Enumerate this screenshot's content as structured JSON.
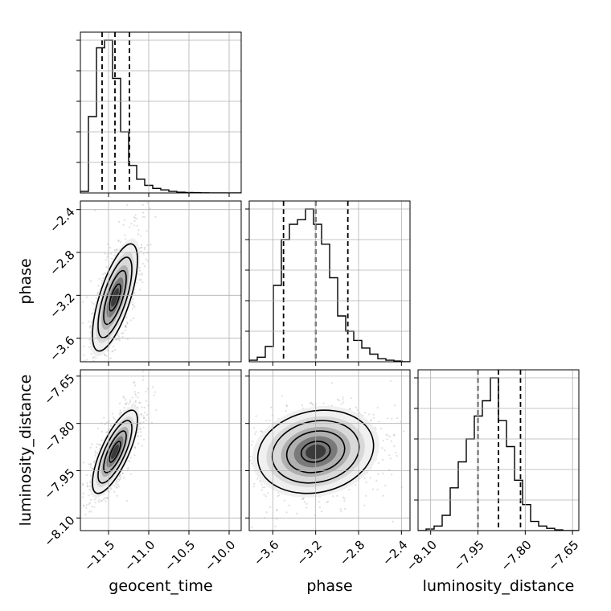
{
  "chart_data": {
    "type": "corner",
    "parameters": [
      "geocent_time",
      "phase",
      "luminosity_distance"
    ],
    "axes": {
      "geocent_time": {
        "label": "geocent_time",
        "range": [
          -11.85,
          -9.85
        ],
        "ticks": [
          -11.5,
          -11.0,
          -10.5,
          -10.0
        ],
        "tick_labels": [
          "−11.5",
          "−11.0",
          "−10.5",
          "−10.0"
        ]
      },
      "phase": {
        "label": "phase",
        "range": [
          -3.82,
          -2.32
        ],
        "ticks": [
          -3.6,
          -3.2,
          -2.8,
          -2.4
        ],
        "tick_labels": [
          "−3.6",
          "−3.2",
          "−2.8",
          "−2.4"
        ]
      },
      "luminosity_distance": {
        "label": "luminosity_distance",
        "range": [
          -8.14,
          -7.63
        ],
        "ticks": [
          -8.1,
          -7.95,
          -7.8,
          -7.65
        ],
        "tick_labels": [
          "−8.10",
          "−7.95",
          "−7.80",
          "−7.65"
        ]
      }
    },
    "histograms": {
      "geocent_time": {
        "bin_edges": [
          -11.85,
          -11.75,
          -11.65,
          -11.55,
          -11.45,
          -11.35,
          -11.25,
          -11.15,
          -11.05,
          -10.95,
          -10.85,
          -10.75,
          -10.65,
          -10.55,
          -10.45,
          -10.35,
          -10.25,
          -10.15,
          -10.05,
          -9.95,
          -9.85
        ],
        "counts": [
          0.01,
          0.5,
          0.95,
          1.0,
          0.75,
          0.4,
          0.18,
          0.09,
          0.05,
          0.03,
          0.02,
          0.01,
          0.005,
          0.003,
          0.002,
          0.001,
          0.0,
          0.0,
          0.0,
          0.0
        ],
        "quantiles": [
          -11.58,
          -11.42,
          -11.24
        ]
      },
      "phase": {
        "bin_edges": [
          -3.82,
          -3.745,
          -3.67,
          -3.595,
          -3.52,
          -3.445,
          -3.37,
          -3.295,
          -3.22,
          -3.145,
          -3.07,
          -2.995,
          -2.92,
          -2.845,
          -2.77,
          -2.695,
          -2.62,
          -2.545,
          -2.47,
          -2.395,
          -2.32
        ],
        "counts": [
          0.01,
          0.03,
          0.1,
          0.5,
          0.8,
          0.9,
          0.93,
          1.0,
          0.9,
          0.77,
          0.55,
          0.3,
          0.2,
          0.14,
          0.09,
          0.05,
          0.02,
          0.01,
          0.005,
          0.0
        ],
        "quantiles": [
          -3.5,
          -3.2,
          -2.9
        ]
      },
      "luminosity_distance": {
        "bin_edges": [
          -8.14,
          -8.1145,
          -8.089,
          -8.0635,
          -8.038,
          -8.0125,
          -7.987,
          -7.9615,
          -7.936,
          -7.9105,
          -7.885,
          -7.8595,
          -7.834,
          -7.8085,
          -7.783,
          -7.7575,
          -7.732,
          -7.7065,
          -7.681,
          -7.6555,
          -7.63
        ],
        "counts": [
          0.0,
          0.01,
          0.03,
          0.1,
          0.28,
          0.45,
          0.6,
          0.75,
          0.85,
          1.0,
          0.72,
          0.55,
          0.33,
          0.17,
          0.06,
          0.03,
          0.015,
          0.005,
          0.0,
          0.0
        ],
        "quantiles": [
          -7.95,
          -7.885,
          -7.815
        ]
      }
    },
    "pairs": [
      {
        "x": "geocent_time",
        "y": "phase",
        "peak": [
          -11.42,
          -3.22
        ],
        "sigma": [
          0.14,
          0.25
        ],
        "correlation": 0.7,
        "contours": [
          0.5,
          1.0,
          1.5,
          2.0
        ]
      },
      {
        "x": "geocent_time",
        "y": "luminosity_distance",
        "peak": [
          -11.42,
          -7.89
        ],
        "sigma": [
          0.14,
          0.066
        ],
        "correlation": 0.75,
        "contours": [
          0.5,
          1.0,
          1.5,
          2.0
        ]
      },
      {
        "x": "phase",
        "y": "luminosity_distance",
        "peak": [
          -3.2,
          -7.89
        ],
        "sigma": [
          0.27,
          0.066
        ],
        "correlation": 0.15,
        "contours": [
          0.5,
          1.0,
          1.5,
          2.0
        ]
      }
    ],
    "grid": true,
    "quantile_line_style": "dashed",
    "colors": {
      "line": "#000000",
      "grid": "#b0b0b0",
      "points": "#808080"
    }
  }
}
